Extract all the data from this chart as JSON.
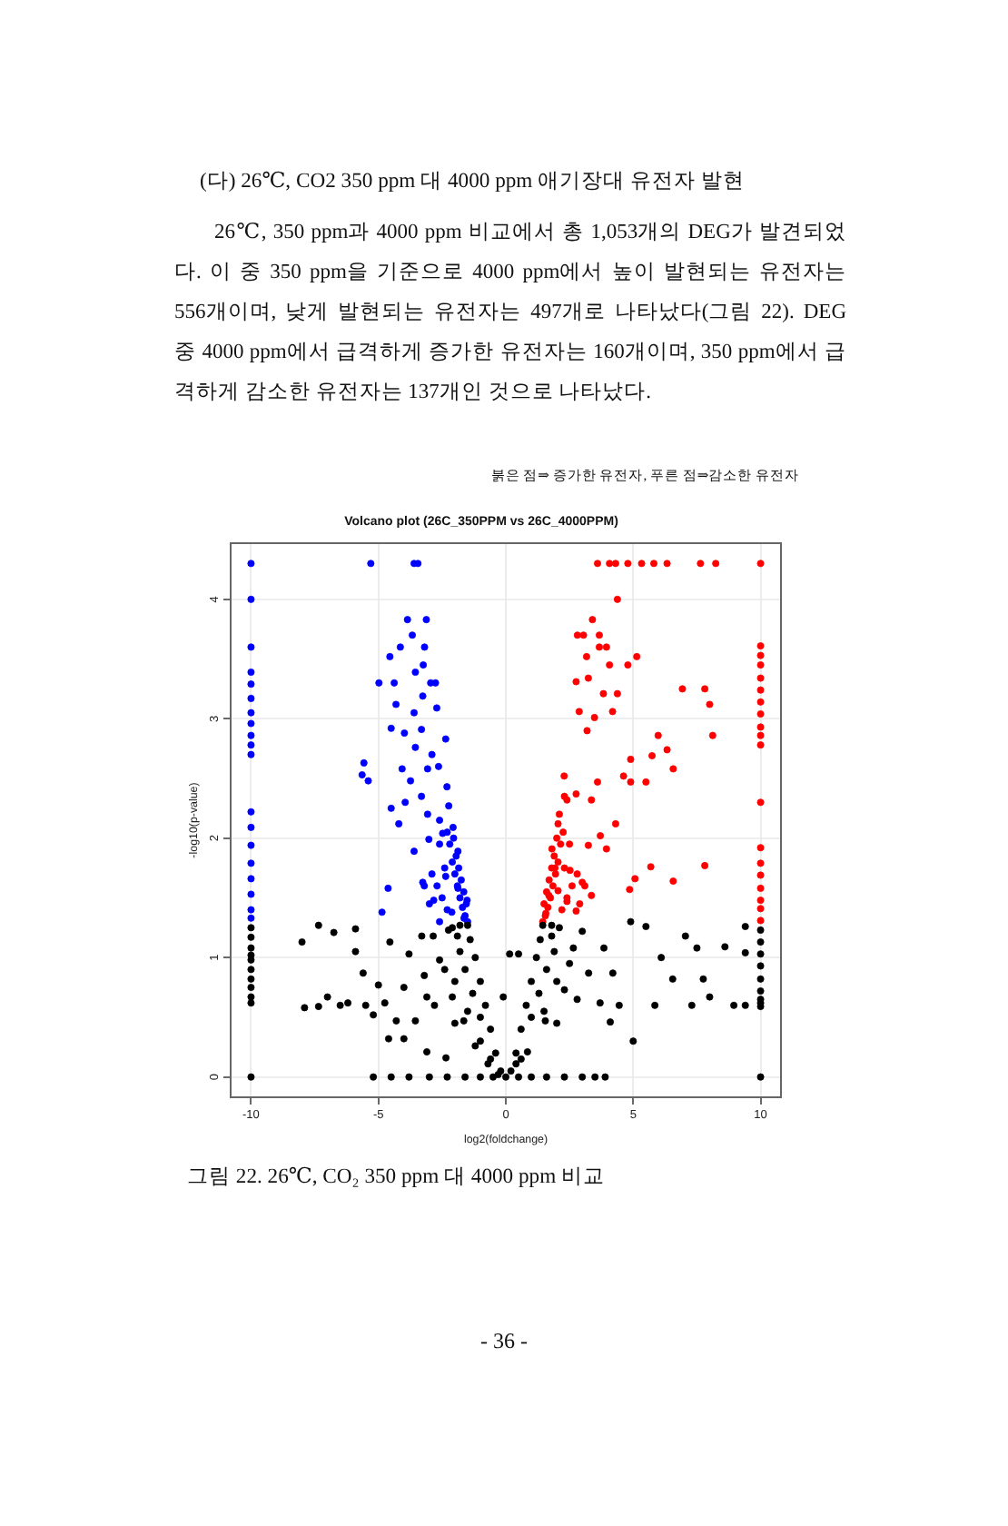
{
  "chart_data": {
    "type": "scatter",
    "title": "Volcano plot (26C_350PPM vs 26C_4000PPM)",
    "xlabel": "log2(foldchange)",
    "ylabel": "-log10(p-value)",
    "annotations": [
      "(다) 26℃, CO2 350 ppm 대 4000 ppm 애기장대 유전자 발현",
      "26℃, 350 ppm과 4000 ppm 비교에서 총 1,053개의 DEG가 발견되었다. 이 중 350 ppm을 기준으로 4000 ppm에서 높이 발현되는 유전자는 556개이며, 낮게 발현되는 유전자는 497개로 나타났다(그림 22). DEG 중 4000 ppm에서 급격하게 증가한 유전자는 160개이며, 350 ppm에서 급격하게 감소한 유전자는 137개인 것으로 나타났다.",
      "붉은 점⇒ 증가한 유전자, 푸른 점⇒감소한 유전자",
      "그림 22. 26℃, CO₂ 350 ppm 대 4000 ppm 비교",
      "- 36 -"
    ],
    "xlim": [
      -10.8,
      10.8
    ],
    "ylim": [
      -0.17,
      4.47
    ],
    "xticks": [
      -10,
      -5,
      0,
      5,
      10
    ],
    "yticks": [
      0,
      1,
      2,
      3,
      4
    ],
    "grid": true,
    "marker": "circle",
    "series": [
      {
        "color": "#000000",
        "x": [
          -10,
          -10,
          -10,
          -10,
          -10,
          -10,
          -10,
          -10,
          -10,
          -10,
          -10,
          10,
          10,
          10,
          10,
          10,
          10,
          10,
          10,
          10,
          10,
          -5.2,
          -4.5,
          -3.8,
          -3,
          -2.3,
          -1.6,
          -1,
          -0.5,
          0,
          0.5,
          1,
          1.6,
          2.3,
          3,
          3.5,
          3.9,
          -8,
          -7.35,
          -6.75,
          -5.9,
          -5.9,
          -7.9,
          -7.35,
          -7,
          -6.2,
          -5.6,
          -5.2,
          -5,
          -4.75,
          -4.6,
          -4,
          -4.3,
          -3.55,
          -3.1,
          -2.35,
          -4.55,
          -3.8,
          -3.3,
          -2.85,
          -2.6,
          -2.25,
          -1.9,
          -3.1,
          -2.1,
          -1.65,
          -1.2,
          -0.7,
          -6.5,
          -5.5,
          -3.2,
          -4,
          -0.2,
          -0.4,
          -0.6,
          -0.8,
          -1,
          -1.2,
          -1.4,
          -1.5,
          -1.8,
          -2.1,
          -1,
          -1.3,
          -1.6,
          -1.8,
          -1.5,
          -2,
          -2.4,
          -0.6,
          -1,
          -2,
          -2.8,
          -0.3,
          4.9,
          5.5,
          7.05,
          9.4,
          9.4,
          8.6,
          7.5,
          6.1,
          6.55,
          7.75,
          8,
          8.95,
          9.4,
          7.3,
          5.85,
          4.45,
          5,
          4.1,
          3.7,
          3.85,
          3.25,
          4.2,
          3,
          2.65,
          1.8,
          2.3,
          1.55,
          0.85,
          0.4,
          0.15,
          0.5,
          -0.1,
          0.2,
          0.4,
          0.6,
          0.8,
          1,
          1.2,
          1.35,
          1.45,
          1.8,
          2.1,
          1,
          1.3,
          1.6,
          1.9,
          1.5,
          2,
          2.5,
          0.6,
          2,
          2.8
        ],
        "values": [
          1.25,
          1.17,
          1.08,
          1.02,
          0.98,
          0.9,
          0.82,
          0.75,
          0.67,
          0.62,
          0,
          1.23,
          1.13,
          1.03,
          0.93,
          0.82,
          0.72,
          0.65,
          0.62,
          0.59,
          0,
          0,
          0,
          0,
          0,
          0,
          0,
          0,
          0,
          0,
          0,
          0,
          0,
          0,
          0,
          0,
          0,
          1.13,
          1.27,
          1.21,
          1.24,
          1.05,
          0.58,
          0.59,
          0.67,
          0.62,
          0.87,
          0.52,
          0.77,
          0.62,
          0.32,
          0.32,
          0.47,
          0.47,
          0.21,
          0.16,
          1.13,
          1.03,
          1.18,
          1.18,
          0.98,
          1.23,
          1.18,
          0.67,
          0.67,
          0.47,
          0.26,
          0.11,
          0.6,
          0.6,
          0.85,
          0.75,
          0.05,
          0.2,
          0.4,
          0.6,
          0.8,
          1,
          1.15,
          1.27,
          1.27,
          1.25,
          0.5,
          0.7,
          0.9,
          1.05,
          0.55,
          0.8,
          0.9,
          0.15,
          0.3,
          0.45,
          0.6,
          0.02,
          1.3,
          1.26,
          1.18,
          1.26,
          1.04,
          1.09,
          1.08,
          1,
          0.82,
          0.82,
          0.67,
          0.6,
          0.6,
          0.6,
          0.6,
          0.6,
          0.3,
          0.46,
          0.62,
          1.08,
          0.87,
          0.87,
          1.22,
          1.08,
          1.18,
          0.73,
          0.47,
          0.21,
          0.11,
          1.03,
          1.03,
          0.67,
          0.05,
          0.2,
          0.4,
          0.6,
          0.8,
          1,
          1.15,
          1.27,
          1.27,
          1.25,
          0.5,
          0.7,
          0.9,
          1.05,
          0.55,
          0.8,
          0.95,
          0.15,
          0.45,
          0.65
        ]
      },
      {
        "color": "#0000ff",
        "x": [
          -10,
          -10,
          -10,
          -10,
          -10,
          -10,
          -10,
          -10,
          -10,
          -10,
          -10,
          -10,
          -10,
          -10,
          -10,
          -10,
          -10,
          -10,
          -10,
          -5.3,
          -3.6,
          -3.45,
          -3.86,
          -3.12,
          -3.67,
          -4.14,
          -4.55,
          -3.19,
          -3.24,
          -3.55,
          -4.98,
          -4.38,
          -2.95,
          -2.76,
          -4.31,
          -3.26,
          -3.6,
          -2.71,
          -3.31,
          -4.5,
          -3.98,
          -2.36,
          -3.55,
          -2.9,
          -5.57,
          -5.64,
          -5.4,
          -4.07,
          -3.74,
          -3.07,
          -2.64,
          -2.31,
          -3.31,
          -4.5,
          -3.95,
          -4.2,
          -3.07,
          -2.6,
          -2.24,
          -3.6,
          -3.02,
          -2.48,
          -2.07,
          -1.88,
          -4.62,
          -4.86,
          -3.26,
          -2.83,
          -2.36,
          -1.88,
          -1.64,
          -2.12,
          -2.6,
          -1.52,
          -1.5,
          -1.6,
          -1.7,
          -1.55,
          -1.8,
          -1.65,
          -1.9,
          -1.75,
          -2,
          -1.85,
          -2.1,
          -1.95,
          -2.2,
          -2.05,
          -2.3,
          -2.5,
          -2.3,
          -2.7,
          -2.9,
          -2.4,
          -3,
          -3.2,
          -2.6
        ],
        "values": [
          4.3,
          4,
          3.6,
          3.39,
          3.29,
          3.17,
          3.05,
          2.96,
          2.86,
          2.78,
          2.7,
          2.22,
          2.09,
          1.94,
          1.79,
          1.66,
          1.53,
          1.4,
          1.33,
          4.3,
          4.3,
          4.3,
          3.83,
          3.83,
          3.7,
          3.6,
          3.52,
          3.6,
          3.45,
          3.39,
          3.3,
          3.3,
          3.3,
          3.3,
          3.12,
          3.19,
          3.05,
          3.09,
          2.91,
          2.92,
          2.88,
          2.83,
          2.76,
          2.7,
          2.63,
          2.53,
          2.48,
          2.58,
          2.48,
          2.58,
          2.6,
          2.43,
          2.35,
          2.25,
          2.3,
          2.12,
          2.2,
          2.15,
          2.27,
          1.89,
          1.99,
          2.04,
          2.09,
          1.89,
          1.58,
          1.38,
          1.63,
          1.48,
          1.68,
          1.58,
          1.33,
          1.38,
          1.3,
          1.48,
          1.3,
          1.35,
          1.42,
          1.45,
          1.5,
          1.55,
          1.6,
          1.65,
          1.7,
          1.75,
          1.8,
          1.85,
          1.95,
          2,
          2.05,
          1.5,
          1.4,
          1.6,
          1.7,
          1.75,
          1.45,
          1.6,
          1.95
        ]
      },
      {
        "color": "#ff0000",
        "x": [
          10,
          10,
          10,
          10,
          10,
          10,
          10,
          10,
          10,
          10,
          10,
          10,
          10,
          10,
          10,
          10,
          10,
          10,
          10,
          3.6,
          4.07,
          4.31,
          4.79,
          5.33,
          5.81,
          6.33,
          7.64,
          8.24,
          4.38,
          3.4,
          2.81,
          3.05,
          3.67,
          3.67,
          3.95,
          3.17,
          4.07,
          4.79,
          5.14,
          2.76,
          3.24,
          3.83,
          4.38,
          6.93,
          7.81,
          8,
          2.88,
          3.48,
          4.19,
          3.19,
          5.98,
          8.12,
          6.33,
          5.74,
          4.9,
          6.57,
          4.62,
          4.9,
          5.5,
          3.6,
          2.29,
          2.76,
          2.4,
          3.36,
          4.31,
          3.71,
          3.95,
          3.24,
          5.69,
          7.81,
          6.57,
          5.07,
          4.86,
          2.52,
          3,
          1.93,
          1.69,
          1.57,
          2.4,
          2.05,
          2.76,
          3.36,
          2.05,
          1.81,
          1.45,
          1.55,
          1.65,
          1.5,
          1.75,
          1.6,
          1.85,
          1.7,
          1.95,
          1.8,
          2.05,
          1.9,
          2.15,
          2,
          2.25,
          2.4,
          2.2,
          2.6,
          2.8,
          2.3,
          2.9,
          3.1,
          2.5,
          2.1,
          2.3
        ],
        "values": [
          4.3,
          3.61,
          3.53,
          3.45,
          3.34,
          3.24,
          3.14,
          3.04,
          2.93,
          2.86,
          2.78,
          2.3,
          1.92,
          1.79,
          1.69,
          1.58,
          1.48,
          1.41,
          1.31,
          4.3,
          4.3,
          4.3,
          4.3,
          4.3,
          4.3,
          4.3,
          4.3,
          4.3,
          4,
          3.83,
          3.7,
          3.7,
          3.7,
          3.6,
          3.6,
          3.52,
          3.45,
          3.45,
          3.52,
          3.31,
          3.34,
          3.21,
          3.21,
          3.25,
          3.25,
          3.12,
          3.06,
          3.01,
          3.06,
          2.9,
          2.86,
          2.86,
          2.74,
          2.69,
          2.66,
          2.58,
          2.52,
          2.47,
          2.47,
          2.47,
          2.52,
          2.37,
          2.32,
          2.32,
          2.12,
          2.02,
          1.91,
          1.94,
          1.76,
          1.77,
          1.64,
          1.66,
          1.57,
          1.73,
          1.63,
          1.75,
          1.52,
          1.37,
          1.47,
          1.56,
          1.39,
          1.52,
          2.12,
          1.91,
          1.3,
          1.35,
          1.42,
          1.45,
          1.5,
          1.55,
          1.6,
          1.65,
          1.7,
          1.75,
          1.8,
          1.85,
          1.95,
          2,
          2.05,
          1.5,
          1.4,
          1.6,
          1.7,
          1.75,
          1.45,
          1.6,
          1.95,
          2.2,
          2.35
        ]
      }
    ]
  }
}
